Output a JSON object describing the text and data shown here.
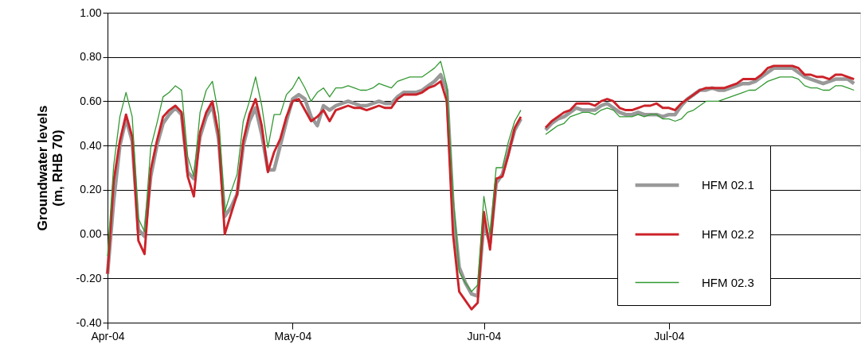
{
  "chart_data": {
    "type": "line",
    "ylabel": "Groundwater levels\n(m, RHB 70)",
    "x": [
      "2004-04-01",
      "2004-04-02",
      "2004-04-03",
      "2004-04-04",
      "2004-04-05",
      "2004-04-06",
      "2004-04-07",
      "2004-04-08",
      "2004-04-09",
      "2004-04-10",
      "2004-04-11",
      "2004-04-12",
      "2004-04-13",
      "2004-04-14",
      "2004-04-15",
      "2004-04-16",
      "2004-04-17",
      "2004-04-18",
      "2004-04-19",
      "2004-04-20",
      "2004-04-21",
      "2004-04-22",
      "2004-04-23",
      "2004-04-24",
      "2004-04-25",
      "2004-04-26",
      "2004-04-27",
      "2004-04-28",
      "2004-04-29",
      "2004-04-30",
      "2004-05-01",
      "2004-05-02",
      "2004-05-03",
      "2004-05-04",
      "2004-05-05",
      "2004-05-06",
      "2004-05-07",
      "2004-05-08",
      "2004-05-09",
      "2004-05-10",
      "2004-05-11",
      "2004-05-12",
      "2004-05-13",
      "2004-05-14",
      "2004-05-15",
      "2004-05-16",
      "2004-05-17",
      "2004-05-18",
      "2004-05-19",
      "2004-05-20",
      "2004-05-21",
      "2004-05-22",
      "2004-05-23",
      "2004-05-24",
      "2004-05-25",
      "2004-05-26",
      "2004-05-27",
      "2004-05-28",
      "2004-05-29",
      "2004-05-30",
      "2004-05-31",
      "2004-06-01",
      "2004-06-02",
      "2004-06-03",
      "2004-06-04",
      "2004-06-05",
      "2004-06-06",
      "2004-06-07",
      "2004-06-09",
      "2004-06-11",
      "2004-06-12",
      "2004-06-13",
      "2004-06-14",
      "2004-06-15",
      "2004-06-16",
      "2004-06-17",
      "2004-06-18",
      "2004-06-19",
      "2004-06-20",
      "2004-06-21",
      "2004-06-22",
      "2004-06-23",
      "2004-06-24",
      "2004-06-25",
      "2004-06-26",
      "2004-06-27",
      "2004-06-28",
      "2004-06-29",
      "2004-06-30",
      "2004-07-01",
      "2004-07-02",
      "2004-07-03",
      "2004-07-04",
      "2004-07-05",
      "2004-07-06",
      "2004-07-07",
      "2004-07-08",
      "2004-07-09",
      "2004-07-10",
      "2004-07-11",
      "2004-07-12",
      "2004-07-13",
      "2004-07-14",
      "2004-07-15",
      "2004-07-16",
      "2004-07-17",
      "2004-07-18",
      "2004-07-19",
      "2004-07-20",
      "2004-07-21",
      "2004-07-22",
      "2004-07-23",
      "2004-07-24",
      "2004-07-25",
      "2004-07-26",
      "2004-07-27",
      "2004-07-28",
      "2004-07-29",
      "2004-07-30",
      "2004-07-31"
    ],
    "series": [
      {
        "name": "HFM 02.1",
        "color": "#999999",
        "values": [
          -0.18,
          0.15,
          0.4,
          0.52,
          0.42,
          0.02,
          -0.01,
          0.26,
          0.4,
          0.5,
          0.54,
          0.57,
          0.54,
          0.28,
          0.25,
          0.44,
          0.53,
          0.58,
          0.43,
          0.08,
          0.12,
          0.18,
          0.4,
          0.51,
          0.57,
          0.45,
          0.29,
          0.29,
          0.4,
          0.51,
          0.61,
          0.63,
          0.61,
          0.53,
          0.49,
          0.58,
          0.56,
          0.58,
          0.59,
          0.6,
          0.59,
          0.58,
          0.58,
          0.59,
          0.6,
          0.59,
          0.59,
          0.62,
          0.64,
          0.64,
          0.64,
          0.65,
          0.67,
          0.69,
          0.72,
          0.65,
          0.12,
          -0.15,
          -0.22,
          -0.27,
          -0.28,
          0.05,
          -0.04,
          0.23,
          0.27,
          0.37,
          0.47,
          0.52,
          null,
          0.47,
          0.5,
          0.52,
          0.53,
          0.55,
          0.57,
          0.56,
          0.56,
          0.56,
          0.58,
          0.59,
          0.57,
          0.55,
          0.54,
          0.54,
          0.55,
          0.54,
          0.54,
          0.54,
          0.53,
          0.54,
          0.54,
          0.58,
          0.61,
          0.63,
          0.65,
          0.65,
          0.66,
          0.65,
          0.65,
          0.66,
          0.67,
          0.68,
          0.68,
          0.69,
          0.71,
          0.73,
          0.75,
          0.75,
          0.75,
          0.75,
          0.73,
          0.71,
          0.7,
          0.69,
          0.68,
          0.69,
          0.7,
          0.7,
          0.7,
          0.68
        ]
      },
      {
        "name": "HFM 02.2",
        "color": "#cc2229",
        "values": [
          -0.18,
          0.24,
          0.42,
          0.54,
          0.44,
          -0.03,
          -0.09,
          0.29,
          0.42,
          0.53,
          0.56,
          0.58,
          0.55,
          0.26,
          0.17,
          0.46,
          0.55,
          0.6,
          0.45,
          0.0,
          0.09,
          0.18,
          0.42,
          0.54,
          0.61,
          0.49,
          0.28,
          0.37,
          0.43,
          0.53,
          0.6,
          0.61,
          0.56,
          0.51,
          0.53,
          0.56,
          0.51,
          0.56,
          0.57,
          0.58,
          0.57,
          0.57,
          0.56,
          0.57,
          0.58,
          0.57,
          0.57,
          0.61,
          0.63,
          0.63,
          0.63,
          0.64,
          0.66,
          0.67,
          0.69,
          0.6,
          0.0,
          -0.26,
          -0.3,
          -0.34,
          -0.31,
          0.1,
          -0.07,
          0.25,
          0.26,
          0.36,
          0.48,
          0.53,
          null,
          0.48,
          0.51,
          0.53,
          0.55,
          0.56,
          0.59,
          0.59,
          0.59,
          0.58,
          0.6,
          0.61,
          0.6,
          0.57,
          0.56,
          0.56,
          0.57,
          0.58,
          0.58,
          0.59,
          0.57,
          0.57,
          0.56,
          0.59,
          0.61,
          0.63,
          0.65,
          0.66,
          0.66,
          0.66,
          0.66,
          0.67,
          0.68,
          0.7,
          0.7,
          0.7,
          0.72,
          0.75,
          0.76,
          0.76,
          0.76,
          0.76,
          0.75,
          0.72,
          0.72,
          0.71,
          0.71,
          0.7,
          0.72,
          0.72,
          0.71,
          0.7
        ]
      },
      {
        "name": "HFM 02.3",
        "color": "#339933",
        "values": [
          -0.1,
          0.31,
          0.53,
          0.64,
          0.53,
          0.07,
          0.01,
          0.39,
          0.5,
          0.62,
          0.64,
          0.67,
          0.65,
          0.35,
          0.26,
          0.55,
          0.65,
          0.69,
          0.54,
          0.1,
          0.19,
          0.27,
          0.51,
          0.6,
          0.71,
          0.58,
          0.39,
          0.54,
          0.54,
          0.63,
          0.66,
          0.71,
          0.66,
          0.6,
          0.64,
          0.66,
          0.62,
          0.66,
          0.66,
          0.67,
          0.66,
          0.65,
          0.65,
          0.66,
          0.68,
          0.67,
          0.66,
          0.69,
          0.7,
          0.71,
          0.71,
          0.71,
          0.73,
          0.75,
          0.78,
          0.67,
          0.18,
          -0.17,
          -0.22,
          -0.26,
          -0.23,
          0.17,
          0.0,
          0.3,
          0.3,
          0.42,
          0.51,
          0.56,
          null,
          0.45,
          0.47,
          0.49,
          0.5,
          0.53,
          0.54,
          0.55,
          0.55,
          0.54,
          0.56,
          0.57,
          0.56,
          0.53,
          0.53,
          0.53,
          0.54,
          0.53,
          0.54,
          0.54,
          0.52,
          0.52,
          0.51,
          0.52,
          0.55,
          0.56,
          0.58,
          0.6,
          0.6,
          0.6,
          0.61,
          0.62,
          0.63,
          0.64,
          0.65,
          0.65,
          0.67,
          0.69,
          0.7,
          0.71,
          0.71,
          0.71,
          0.7,
          0.67,
          0.66,
          0.66,
          0.65,
          0.65,
          0.67,
          0.67,
          0.66,
          0.65
        ]
      }
    ],
    "xlim": [
      "2004-04-01",
      "2004-08-01"
    ],
    "xticks": [
      {
        "value": "2004-04-01",
        "label": "Apr-04"
      },
      {
        "value": "2004-05-01",
        "label": "May-04"
      },
      {
        "value": "2004-06-01",
        "label": "Jun-04"
      },
      {
        "value": "2004-07-01",
        "label": "Jul-04"
      }
    ],
    "ylim": [
      -0.4,
      1.0
    ],
    "yticks": [
      {
        "value": -0.4,
        "label": "-0.40"
      },
      {
        "value": -0.2,
        "label": "-0.20"
      },
      {
        "value": 0,
        "label": "0.00"
      },
      {
        "value": 0.2,
        "label": "0.20"
      },
      {
        "value": 0.4,
        "label": "0.40"
      },
      {
        "value": 0.6,
        "label": "0.60"
      },
      {
        "value": 0.8,
        "label": "0.80"
      },
      {
        "value": 1.0,
        "label": "1.00"
      }
    ],
    "grid": "y",
    "legend": "right",
    "marker": "none",
    "line_style": "solid"
  }
}
